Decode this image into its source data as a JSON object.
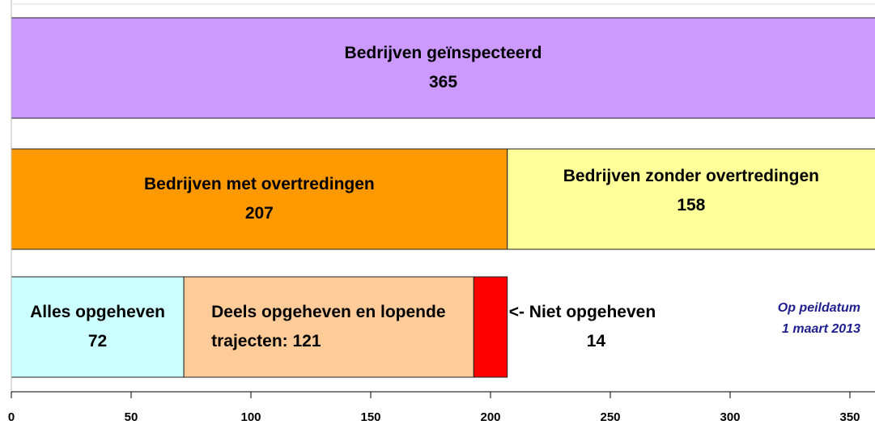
{
  "chart_data": {
    "type": "bar",
    "rows": [
      [
        {
          "name": "Bedrijven geïnspecteerd",
          "value": 365,
          "color": "#cc99ff"
        }
      ],
      [
        {
          "name": "Bedrijven met overtredingen",
          "value": 207,
          "color": "#ff9900"
        },
        {
          "name": "Bedrijven zonder overtredingen",
          "value": 158,
          "color": "#ffff99"
        }
      ],
      [
        {
          "name": "Alles opgeheven",
          "value": 72,
          "color": "#ccffff"
        },
        {
          "name": "Deels opgeheven en lopende trajecten:",
          "value": 121,
          "color": "#ffcc99"
        },
        {
          "name": "<- Niet opgeheven",
          "value": 14,
          "color": "#ff0000"
        }
      ]
    ],
    "annotation": [
      "Op peildatum",
      "1 maart 2013"
    ],
    "xlim": [
      0,
      360
    ],
    "xticks": [
      0,
      50,
      100,
      150,
      200,
      250,
      300,
      350
    ]
  }
}
